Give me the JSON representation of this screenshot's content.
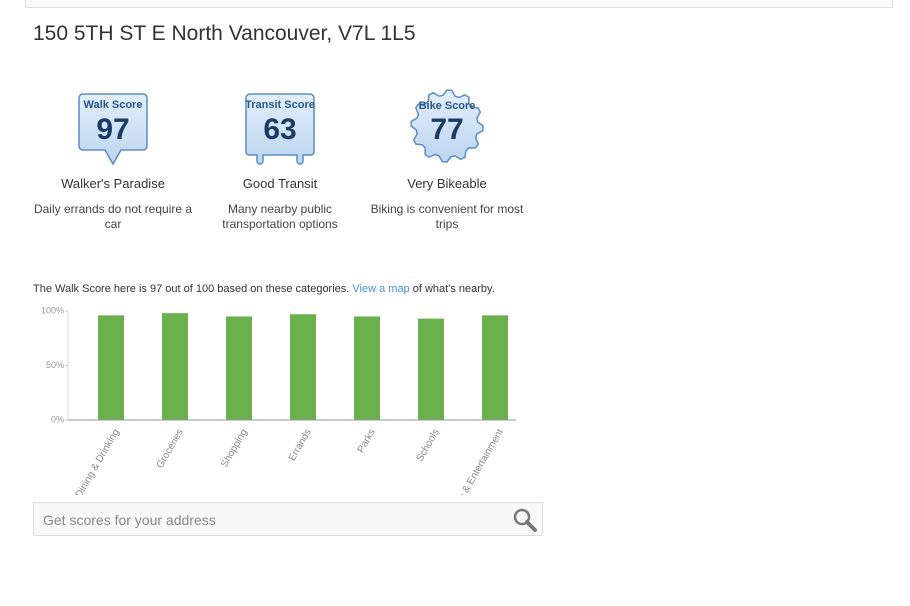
{
  "header": {
    "address": "150 5TH ST E North Vancouver, V7L 1L5"
  },
  "scores": [
    {
      "name": "Walk Score",
      "score": 97,
      "rating": "Walker's Paradise",
      "description": "Daily errands do not require a car"
    },
    {
      "name": "Transit Score",
      "score": 63,
      "rating": "Good Transit",
      "description": "Many nearby public transportation options"
    },
    {
      "name": "Bike Score",
      "score": 77,
      "rating": "Very Bikeable",
      "description": "Biking is convenient for most trips"
    }
  ],
  "summary": {
    "text": "The Walk Score here is 97 out of 100 based on these categories.",
    "link": "View a map",
    "suffix": "of what's nearby."
  },
  "chart_data": {
    "type": "bar",
    "categories": [
      "Dining & Drinking",
      "Groceries",
      "Shopping",
      "Errands",
      "Parks",
      "Schools",
      "Culture & Entertainment"
    ],
    "values": [
      96,
      98,
      95,
      97,
      95,
      93,
      96
    ],
    "color": "#6ab04c",
    "ylim": [
      0,
      100
    ],
    "yticks": [
      {
        "value": 0,
        "label": "0%"
      },
      {
        "value": 50,
        "label": "50%"
      },
      {
        "value": 100,
        "label": "100%"
      }
    ]
  },
  "search": {
    "placeholder": "Get scores for your address"
  }
}
